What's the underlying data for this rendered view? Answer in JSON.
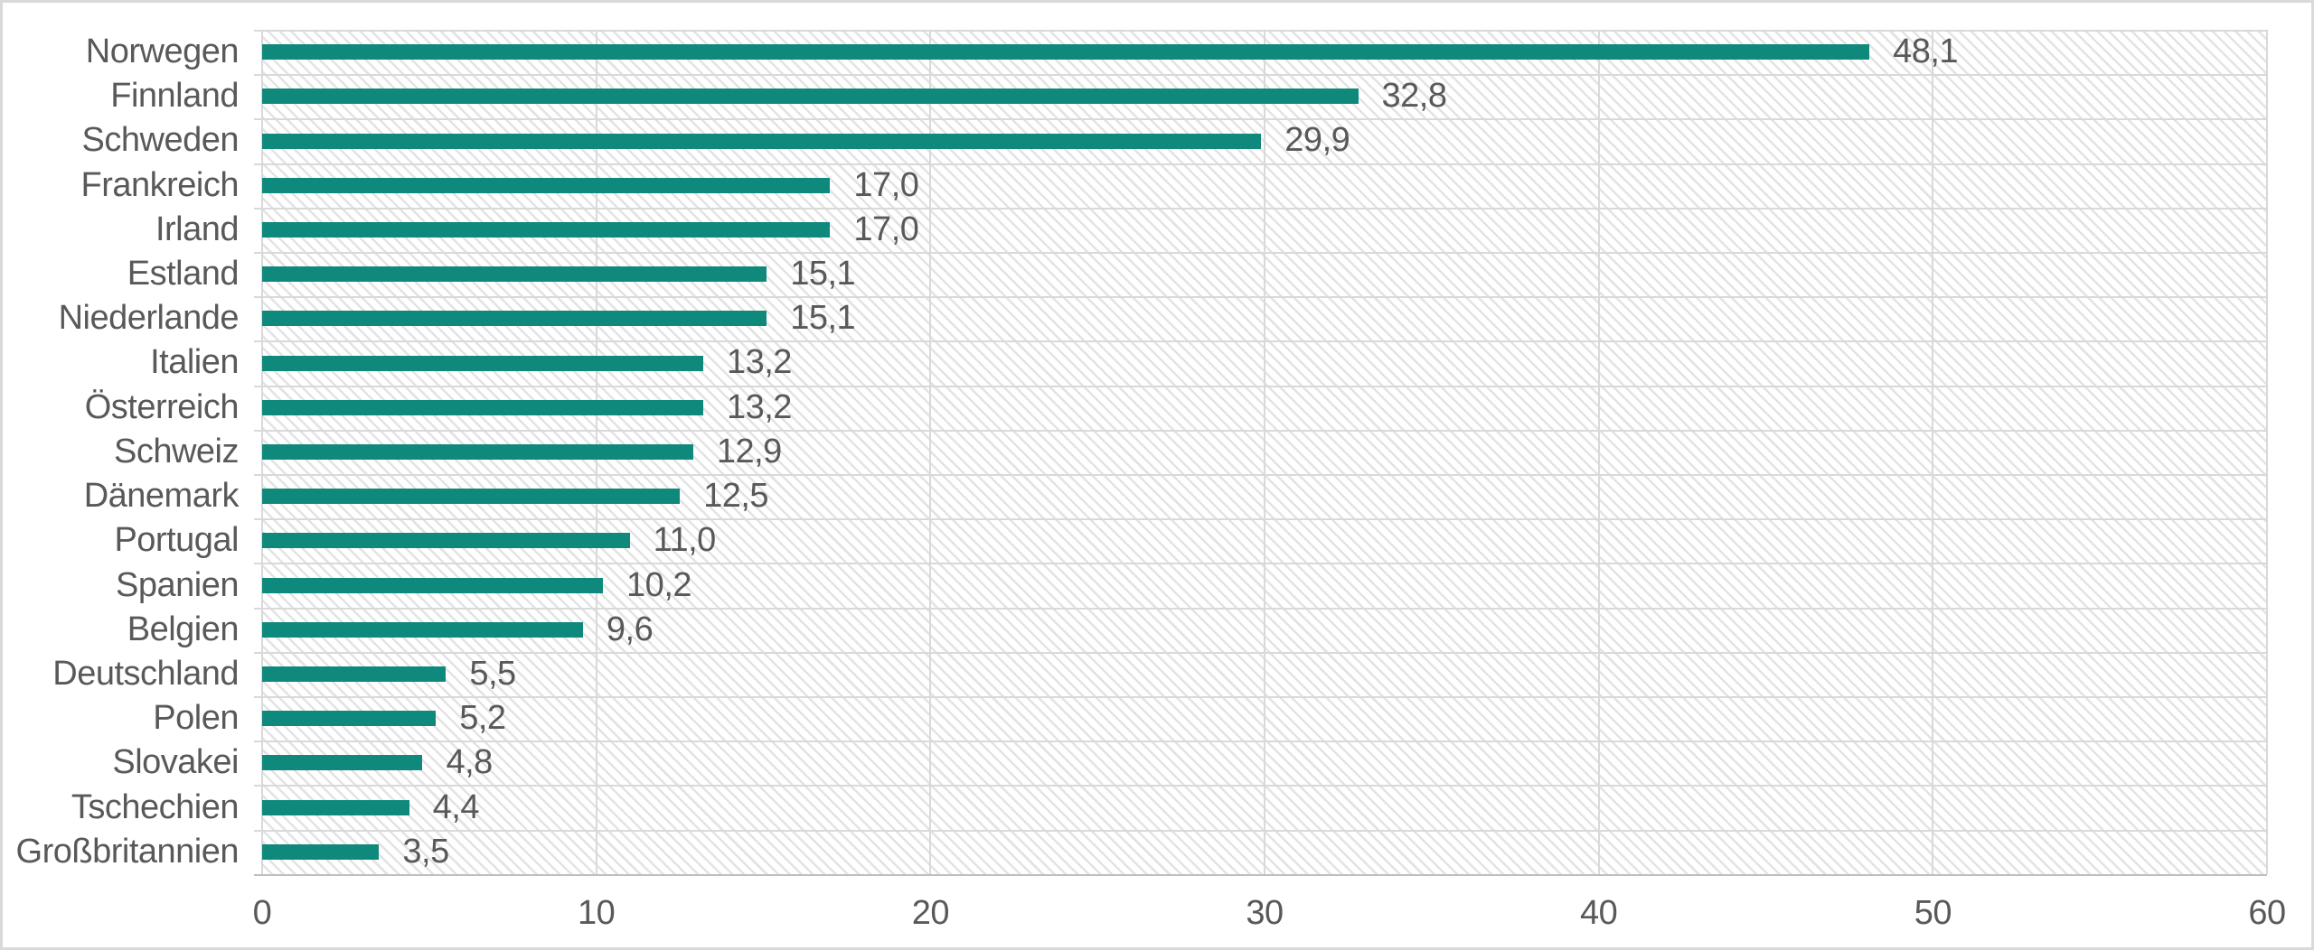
{
  "figure": {
    "background": "#ffffff",
    "border_color": "#d9d9d9"
  },
  "chart_data": {
    "type": "bar",
    "orientation": "horizontal",
    "title": "",
    "xlabel": "",
    "ylabel": "",
    "categories": [
      "Norwegen",
      "Finnland",
      "Schweden",
      "Frankreich",
      "Irland",
      "Estland",
      "Niederlande",
      "Italien",
      "Österreich",
      "Schweiz",
      "Dänemark",
      "Portugal",
      "Spanien",
      "Belgien",
      "Deutschland",
      "Polen",
      "Slovakei",
      "Tschechien",
      "Großbritannien"
    ],
    "values": [
      48.1,
      32.8,
      29.9,
      17.0,
      17.0,
      15.1,
      15.1,
      13.2,
      13.2,
      12.9,
      12.5,
      11.0,
      10.2,
      9.6,
      5.5,
      5.2,
      4.8,
      4.4,
      3.5
    ],
    "value_labels": [
      "48,1",
      "32,8",
      "29,9",
      "17,0",
      "17,0",
      "15,1",
      "15,1",
      "13,2",
      "13,2",
      "12,9",
      "12,5",
      "11,0",
      "10,2",
      "9,6",
      "5,5",
      "5,2",
      "4,8",
      "4,4",
      "3,5"
    ],
    "x_ticks": [
      "0",
      "10",
      "20",
      "30",
      "40",
      "50",
      "60"
    ],
    "x_tick_values": [
      0,
      10,
      20,
      30,
      40,
      50,
      60
    ],
    "xlim": [
      0,
      60
    ],
    "grid": true,
    "legend": "none",
    "plot_background_pattern": "diagonal-hatch",
    "bar_color": "#0f897b",
    "text_color": "#595959",
    "gridline_color": "#d9d9d9",
    "axis_line_color": "#bfbfbf",
    "hatch_line_color": "#e3e3e3",
    "plot_background": "#ffffff"
  }
}
